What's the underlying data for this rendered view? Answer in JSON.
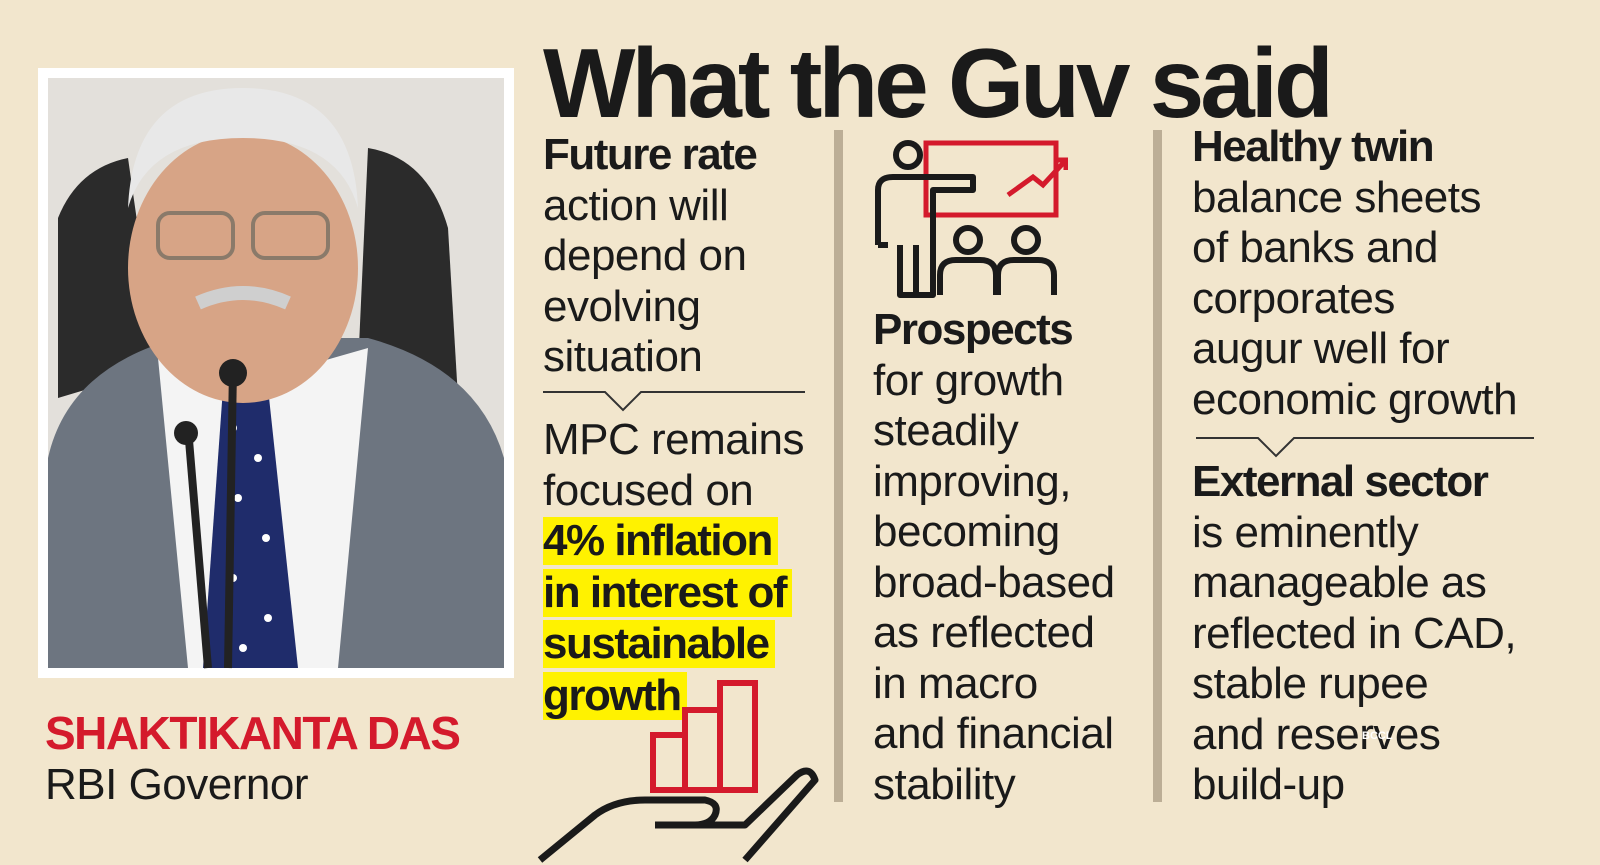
{
  "title": "What the Guv said",
  "person": {
    "name": "SHAKTIKANTA DAS",
    "role": "RBI Governor"
  },
  "columns": [
    {
      "blocks": [
        {
          "lead": "Future rate",
          "lines": [
            "action will",
            "depend on",
            "evolving",
            "situation"
          ]
        },
        {
          "lines": [
            "MPC remains",
            "focused on"
          ],
          "highlight": [
            "4% inflation",
            "in interest of",
            "sustainable",
            "growth"
          ]
        }
      ]
    },
    {
      "blocks": [
        {
          "lead": "Prospects",
          "lines": [
            "for growth",
            "steadily",
            "improving,",
            "becoming",
            "broad-based",
            "as reflected",
            "in macro",
            "and financial",
            "stability"
          ]
        }
      ]
    },
    {
      "blocks": [
        {
          "lead": "Healthy twin",
          "lines": [
            "balance sheets",
            "of banks and",
            "corporates",
            "augur well for",
            "economic growth"
          ]
        },
        {
          "lead": "External sector",
          "lines": [
            "is eminently",
            "manageable as",
            "reflected in CAD,",
            "stable rupee",
            "and reserves",
            "build-up"
          ]
        }
      ]
    }
  ],
  "watermark": "BCCL"
}
